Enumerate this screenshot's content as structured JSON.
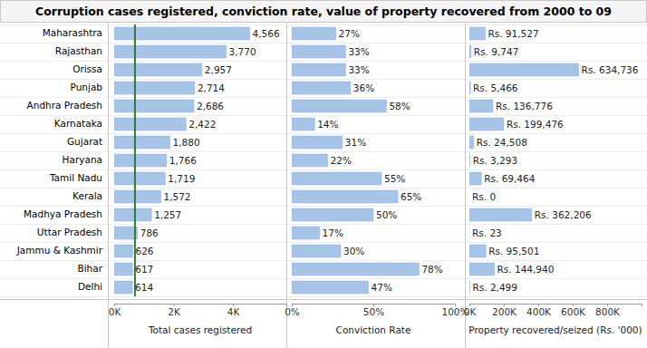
{
  "title": "Corruption cases registered, conviction rate, value of property recovered from 2000 to 09",
  "chart_data": [
    {
      "type": "bar",
      "orientation": "horizontal",
      "data_labels": true,
      "color": "#a6c4e8",
      "xlabel": "Total cases registered",
      "categories": [
        "Maharashtra",
        "Rajasthan",
        "Orissa",
        "Punjab",
        "Andhra Pradesh",
        "Karnataka",
        "Gujarat",
        "Haryana",
        "Tamil Nadu",
        "Kerala",
        "Madhya Pradesh",
        "Uttar Pradesh",
        "Jammu & Kashmir",
        "Bihar",
        "Delhi"
      ],
      "values": [
        4566,
        3770,
        2957,
        2714,
        2686,
        2422,
        1880,
        1766,
        1719,
        1572,
        1257,
        786,
        626,
        617,
        614
      ],
      "value_labels": [
        "4,566",
        "3,770",
        "2,957",
        "2,714",
        "2,686",
        "2,422",
        "1,880",
        "1,766",
        "1,719",
        "1,572",
        "1,257",
        "786",
        "626",
        "617",
        "614"
      ],
      "average_line": 700,
      "xlim": [
        0,
        5800
      ],
      "xticks": [
        {
          "value": 0,
          "label": "0K"
        },
        {
          "value": 2000,
          "label": "2K"
        },
        {
          "value": 4000,
          "label": "4K"
        }
      ]
    },
    {
      "type": "bar",
      "orientation": "horizontal",
      "data_labels": true,
      "color": "#a6c4e8",
      "xlabel": "Conviction Rate",
      "values": [
        27,
        33,
        33,
        36,
        58,
        14,
        31,
        22,
        55,
        65,
        50,
        17,
        30,
        78,
        47
      ],
      "value_labels": [
        "27%",
        "33%",
        "33%",
        "36%",
        "58%",
        "14%",
        "31%",
        "22%",
        "55%",
        "65%",
        "50%",
        "17%",
        "30%",
        "78%",
        "47%"
      ],
      "xlim": [
        0,
        100
      ],
      "xticks": [
        {
          "value": 0,
          "label": "0%"
        },
        {
          "value": 50,
          "label": "50%"
        },
        {
          "value": 100,
          "label": "100%"
        }
      ]
    },
    {
      "type": "bar",
      "orientation": "horizontal",
      "data_labels": true,
      "color": "#a6c4e8",
      "xlabel": "Property recovered/seized (Rs. '000)",
      "values": [
        91527,
        9747,
        634736,
        5466,
        136776,
        199476,
        24508,
        3293,
        69464,
        0,
        362206,
        23,
        95501,
        144940,
        2499
      ],
      "value_labels": [
        "Rs. 91,527",
        "Rs. 9,747",
        "Rs. 634,736",
        "Rs. 5,466",
        "Rs. 136,776",
        "Rs. 199,476",
        "Rs. 24,508",
        "Rs. 3,293",
        "Rs. 69,464",
        "Rs. 0",
        "Rs. 362,206",
        "Rs. 23",
        "Rs. 95,501",
        "Rs. 144,940",
        "Rs. 2,499"
      ],
      "xlim": [
        0,
        1000000
      ],
      "xticks": [
        {
          "value": 0,
          "label": "0K"
        },
        {
          "value": 200000,
          "label": "200K"
        },
        {
          "value": 400000,
          "label": "400K"
        },
        {
          "value": 600000,
          "label": "600K"
        },
        {
          "value": 800000,
          "label": "800K"
        }
      ]
    }
  ]
}
